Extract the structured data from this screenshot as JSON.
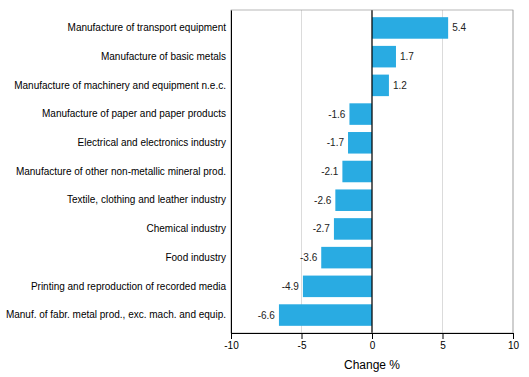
{
  "chart_data": {
    "type": "bar",
    "orientation": "horizontal",
    "categories": [
      "Manuf. of fabr. metal prod., exc. mach. and equip.",
      "Printing and reproduction of recorded media",
      "Food industry",
      "Chemical industry",
      "Textile, clothing and leather industry",
      "Manufacture of other non-metallic mineral prod.",
      "Electrical and electronics industry",
      "Manufacture of paper and paper products",
      "Manufacture of machinery and equipment n.e.c.",
      "Manufacture of basic metals",
      "Manufacture of transport equipment"
    ],
    "values": [
      -6.6,
      -4.9,
      -3.6,
      -2.7,
      -2.6,
      -2.1,
      -1.7,
      -1.6,
      1.2,
      1.7,
      5.4
    ],
    "color": "#29abe2",
    "xlabel": "Change %",
    "xlim": [
      -10,
      10
    ],
    "xticks": [
      -10,
      -5,
      0,
      5,
      10
    ],
    "grid": true,
    "data_labels": true
  }
}
